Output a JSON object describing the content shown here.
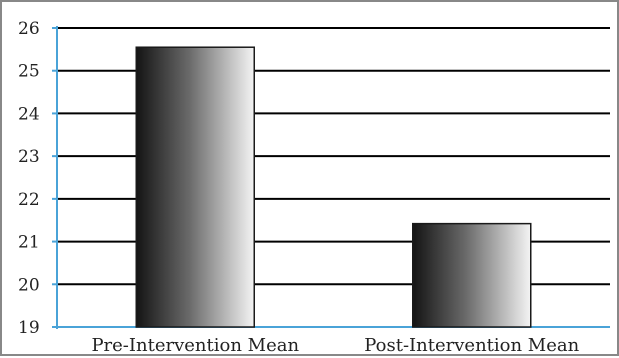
{
  "chart_data": {
    "type": "bar",
    "title": "",
    "xlabel": "",
    "ylabel": "",
    "categories": [
      "Pre-Intervention Mean",
      "Post-Intervention Mean"
    ],
    "values": [
      25.55,
      21.42
    ],
    "ylim": [
      19,
      26
    ],
    "yticks": [
      "19",
      "20",
      "21",
      "22",
      "23",
      "24",
      "25",
      "26"
    ],
    "grid": true,
    "legend": "none",
    "colors": {
      "gridline": "#000000",
      "axis": "#4aa3d8",
      "bar_dark": "#141414",
      "bar_light": "#f4f4f4",
      "frame": "#888888"
    }
  }
}
